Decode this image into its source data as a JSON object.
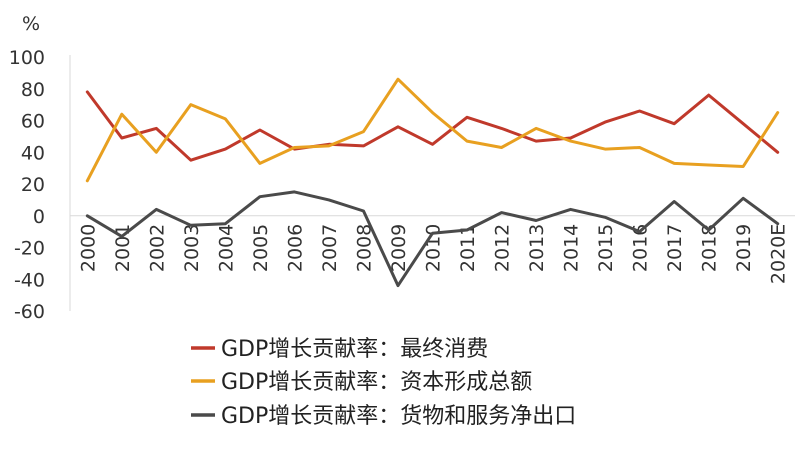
{
  "chart_data": {
    "type": "line",
    "unit_label": "%",
    "categories": [
      "2000",
      "2001",
      "2002",
      "2003",
      "2004",
      "2005",
      "2006",
      "2007",
      "2008",
      "2009",
      "2010",
      "2011",
      "2012",
      "2013",
      "2014",
      "2015",
      "2016",
      "2017",
      "2018",
      "2019",
      "2020E"
    ],
    "ylim": [
      -60,
      100
    ],
    "yticks": [
      -60,
      -40,
      -20,
      0,
      20,
      40,
      60,
      80,
      100
    ],
    "grid": false,
    "legend_position": "bottom",
    "series": [
      {
        "name": "GDP增长贡献率：最终消费",
        "color": "#c0392b",
        "values": [
          78,
          49,
          55,
          35,
          42,
          54,
          42,
          45,
          44,
          56,
          45,
          62,
          55,
          47,
          49,
          59,
          66,
          58,
          76,
          58,
          40
        ]
      },
      {
        "name": "GDP增长贡献率：资本形成总额",
        "color": "#e8a020",
        "values": [
          22,
          64,
          40,
          70,
          61,
          33,
          43,
          44,
          53,
          86,
          65,
          47,
          43,
          55,
          47,
          42,
          43,
          33,
          32,
          31,
          65
        ]
      },
      {
        "name": "GDP增长贡献率：货物和服务净出口",
        "color": "#4a4a4a",
        "values": [
          0,
          -13,
          4,
          -6,
          -5,
          12,
          15,
          10,
          3,
          -44,
          -11,
          -9,
          2,
          -3,
          4,
          -1,
          -10,
          9,
          -9,
          11,
          -5
        ]
      }
    ]
  }
}
